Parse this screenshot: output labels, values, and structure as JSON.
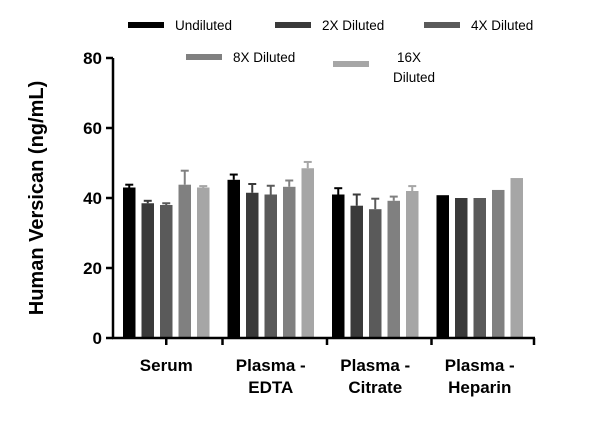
{
  "chart_data": {
    "type": "bar",
    "title": "",
    "xlabel": "",
    "ylabel": "Human Versican (ng/mL)",
    "ylim": [
      0,
      80
    ],
    "yticks": [
      0,
      20,
      40,
      60,
      80
    ],
    "grid": false,
    "legend_placement": "top",
    "categories": [
      [
        "Serum"
      ],
      [
        "Plasma -",
        "EDTA"
      ],
      [
        "Plasma -",
        "Citrate"
      ],
      [
        "Plasma -",
        "Heparin"
      ]
    ],
    "series": [
      {
        "name": [
          "Undiluted"
        ],
        "color": "#000000",
        "values": [
          43.0,
          45.2,
          41.0,
          40.8
        ],
        "errors": [
          0.8,
          1.5,
          1.8,
          0
        ]
      },
      {
        "name": [
          "2X Diluted"
        ],
        "color": "#3a3a3a",
        "values": [
          38.5,
          41.5,
          37.8,
          40.0
        ],
        "errors": [
          0.7,
          2.5,
          3.2,
          0
        ]
      },
      {
        "name": [
          "4X Diluted"
        ],
        "color": "#5a5a5a",
        "values": [
          38.0,
          41.0,
          36.8,
          40.0
        ],
        "errors": [
          0.5,
          2.5,
          3.0,
          0
        ]
      },
      {
        "name": [
          "8X Diluted"
        ],
        "color": "#808080",
        "values": [
          43.8,
          43.2,
          39.2,
          42.3
        ],
        "errors": [
          4.0,
          1.8,
          1.2,
          0
        ]
      },
      {
        "name": [
          "16X",
          "Diluted"
        ],
        "color": "#a6a6a6",
        "values": [
          43.0,
          48.5,
          42.0,
          45.7
        ],
        "errors": [
          0.4,
          1.8,
          1.4,
          0
        ]
      }
    ]
  }
}
